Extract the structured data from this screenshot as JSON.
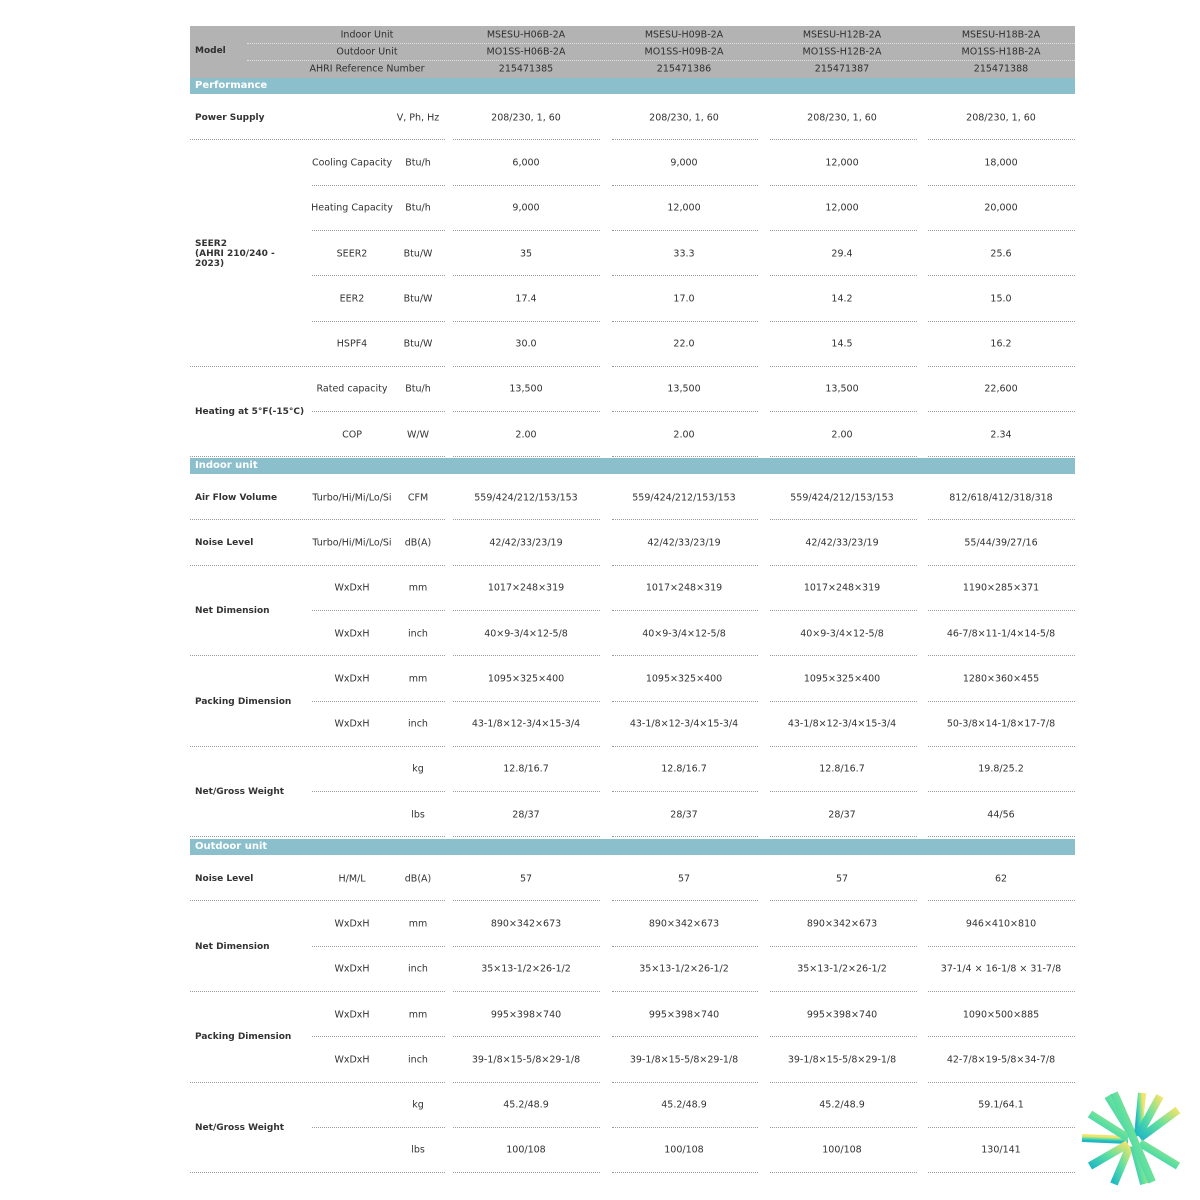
{
  "header": {
    "model_label": "Model",
    "rows": [
      {
        "label": "Indoor Unit",
        "values": [
          "MSESU-H06B-2A",
          "MSESU-H09B-2A",
          "MSESU-H12B-2A",
          "MSESU-H18B-2A"
        ]
      },
      {
        "label": "Outdoor Unit",
        "values": [
          "MO1SS-H06B-2A",
          "MO1SS-H09B-2A",
          "MO1SS-H12B-2A",
          "MO1SS-H18B-2A"
        ]
      },
      {
        "label": "AHRI Reference Number",
        "values": [
          "215471385",
          "215471386",
          "215471387",
          "215471388"
        ]
      }
    ]
  },
  "colors": {
    "header": "#b3b3b3",
    "band": "#8abfcb"
  },
  "sections": [
    {
      "title": "Performance",
      "groups": [
        {
          "label": "Power Supply",
          "rows": [
            {
              "sub": "",
              "unit": "V, Ph, Hz",
              "values": [
                "208/230, 1, 60",
                "208/230, 1, 60",
                "208/230, 1, 60",
                "208/230, 1, 60"
              ]
            }
          ]
        },
        {
          "label": "SEER2\n(AHRI 210/240 -\n2023)",
          "rows": [
            {
              "sub": "Cooling Capacity",
              "unit": "Btu/h",
              "values": [
                "6,000",
                "9,000",
                "12,000",
                "18,000"
              ]
            },
            {
              "sub": "Heating Capacity",
              "unit": "Btu/h",
              "values": [
                "9,000",
                "12,000",
                "12,000",
                "20,000"
              ]
            },
            {
              "sub": "SEER2",
              "unit": "Btu/W",
              "values": [
                "35",
                "33.3",
                "29.4",
                "25.6"
              ]
            },
            {
              "sub": "EER2",
              "unit": "Btu/W",
              "values": [
                "17.4",
                "17.0",
                "14.2",
                "15.0"
              ]
            },
            {
              "sub": "HSPF4",
              "unit": "Btu/W",
              "values": [
                "30.0",
                "22.0",
                "14.5",
                "16.2"
              ]
            }
          ]
        },
        {
          "label": "Heating at 5°F(-15°C)",
          "rows": [
            {
              "sub": "Rated capacity",
              "unit": "Btu/h",
              "values": [
                "13,500",
                "13,500",
                "13,500",
                "22,600"
              ]
            },
            {
              "sub": "COP",
              "unit": "W/W",
              "values": [
                "2.00",
                "2.00",
                "2.00",
                "2.34"
              ]
            }
          ]
        }
      ]
    },
    {
      "title": "Indoor unit",
      "groups": [
        {
          "label": "Air Flow Volume",
          "rows": [
            {
              "sub": "Turbo/Hi/Mi/Lo/Si",
              "unit": "CFM",
              "values": [
                "559/424/212/153/153",
                "559/424/212/153/153",
                "559/424/212/153/153",
                "812/618/412/318/318"
              ]
            }
          ]
        },
        {
          "label": "Noise Level",
          "rows": [
            {
              "sub": "Turbo/Hi/Mi/Lo/Si",
              "unit": "dB(A)",
              "values": [
                "42/42/33/23/19",
                "42/42/33/23/19",
                "42/42/33/23/19",
                "55/44/39/27/16"
              ]
            }
          ]
        },
        {
          "label": "Net Dimension",
          "rows": [
            {
              "sub": "WxDxH",
              "unit": "mm",
              "values": [
                "1017×248×319",
                "1017×248×319",
                "1017×248×319",
                "1190×285×371"
              ]
            },
            {
              "sub": "WxDxH",
              "unit": "inch",
              "values": [
                "40×9-3/4×12-5/8",
                "40×9-3/4×12-5/8",
                "40×9-3/4×12-5/8",
                "46-7/8×11-1/4×14-5/8"
              ]
            }
          ]
        },
        {
          "label": "Packing Dimension",
          "rows": [
            {
              "sub": "WxDxH",
              "unit": "mm",
              "values": [
                "1095×325×400",
                "1095×325×400",
                "1095×325×400",
                "1280×360×455"
              ]
            },
            {
              "sub": "WxDxH",
              "unit": "inch",
              "values": [
                "43-1/8×12-3/4×15-3/4",
                "43-1/8×12-3/4×15-3/4",
                "43-1/8×12-3/4×15-3/4",
                "50-3/8×14-1/8×17-7/8"
              ]
            }
          ]
        },
        {
          "label": "Net/Gross Weight",
          "rows": [
            {
              "sub": "",
              "unit": "kg",
              "values": [
                "12.8/16.7",
                "12.8/16.7",
                "12.8/16.7",
                "19.8/25.2"
              ]
            },
            {
              "sub": "",
              "unit": "lbs",
              "values": [
                "28/37",
                "28/37",
                "28/37",
                "44/56"
              ]
            }
          ]
        }
      ]
    },
    {
      "title": "Outdoor unit",
      "groups": [
        {
          "label": "Noise Level",
          "rows": [
            {
              "sub": "H/M/L",
              "unit": "dB(A)",
              "values": [
                "57",
                "57",
                "57",
                "62"
              ]
            }
          ]
        },
        {
          "label": "Net Dimension",
          "rows": [
            {
              "sub": "WxDxH",
              "unit": "mm",
              "values": [
                "890×342×673",
                "890×342×673",
                "890×342×673",
                "946×410×810"
              ]
            },
            {
              "sub": "WxDxH",
              "unit": "inch",
              "values": [
                "35×13-1/2×26-1/2",
                "35×13-1/2×26-1/2",
                "35×13-1/2×26-1/2",
                "37-1/4 × 16-1/8 × 31-7/8"
              ]
            }
          ]
        },
        {
          "label": "Packing Dimension",
          "rows": [
            {
              "sub": "WxDxH",
              "unit": "mm",
              "values": [
                "995×398×740",
                "995×398×740",
                "995×398×740",
                "1090×500×885"
              ]
            },
            {
              "sub": "WxDxH",
              "unit": "inch",
              "values": [
                "39-1/8×15-5/8×29-1/8",
                "39-1/8×15-5/8×29-1/8",
                "39-1/8×15-5/8×29-1/8",
                "42-7/8×19-5/8×34-7/8"
              ]
            }
          ]
        },
        {
          "label": "Net/Gross Weight",
          "rows": [
            {
              "sub": "",
              "unit": "kg",
              "values": [
                "45.2/48.9",
                "45.2/48.9",
                "45.2/48.9",
                "59.1/64.1"
              ]
            },
            {
              "sub": "",
              "unit": "lbs",
              "values": [
                "100/108",
                "100/108",
                "100/108",
                "130/141"
              ]
            }
          ]
        }
      ]
    }
  ]
}
